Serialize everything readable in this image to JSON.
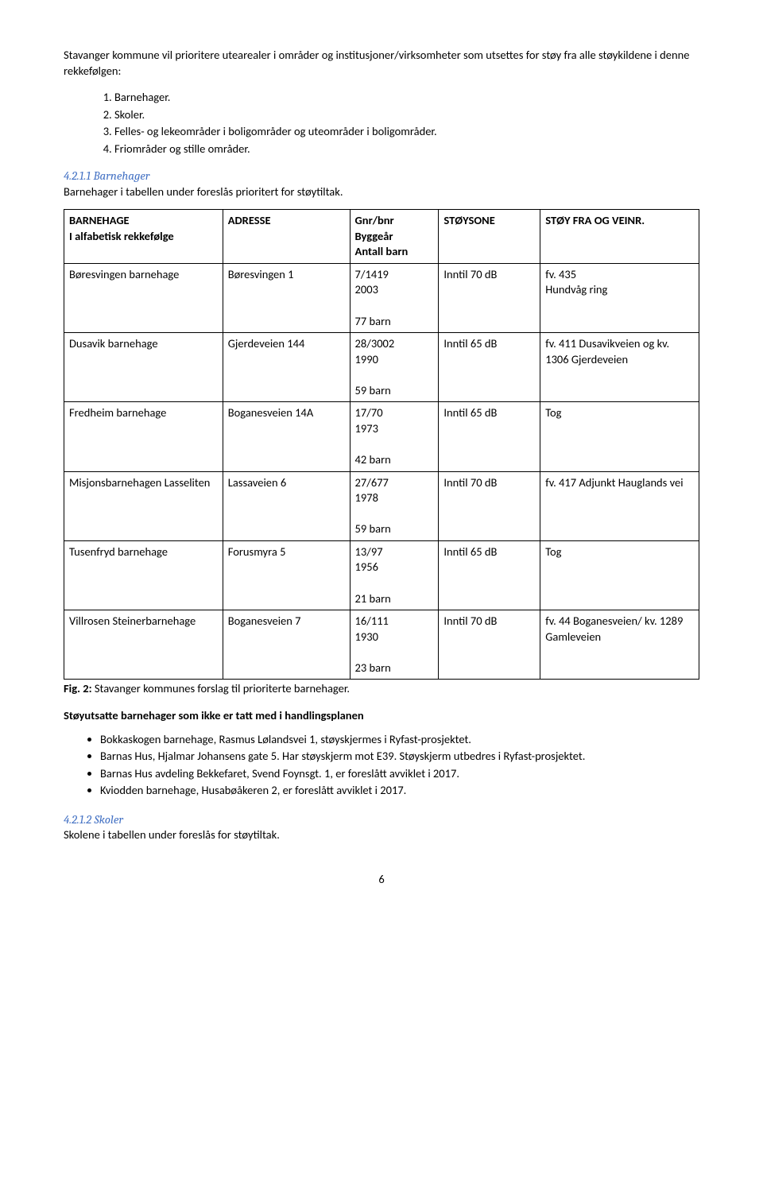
{
  "intro": "Stavanger kommune vil prioritere utearealer i områder og institusjoner/virksomheter som utsettes for støy fra alle støykildene i denne rekkefølgen:",
  "ordered_list": [
    "Barnehager.",
    "Skoler.",
    "Felles- og lekeområder i boligområder og uteområder i boligområder.",
    "Friområder og stille områder."
  ],
  "section1": {
    "num": "4.2.1.1 Barnehager",
    "body": "Barnehager i tabellen under foreslås prioritert for støytiltak."
  },
  "table": {
    "headers": {
      "c1": "BARNEHAGE\nI alfabetisk rekkefølge",
      "c2": "ADRESSE",
      "c3": "Gnr/bnr\nByggeår\nAntall barn",
      "c4": "STØYSONE",
      "c5": "STØY FRA OG VEINR."
    },
    "rows": [
      {
        "c1": "Børesvingen barnehage",
        "c2": "Børesvingen 1",
        "c3": "7/1419\n2003\n\n77 barn",
        "c4": "Inntil 70 dB",
        "c5": "fv. 435\nHundvåg ring"
      },
      {
        "c1": "Dusavik barnehage",
        "c2": "Gjerdeveien 144",
        "c3": "28/3002\n1990\n\n59 barn",
        "c4": "Inntil 65 dB",
        "c5": "fv. 411 Dusavikveien og kv. 1306 Gjerdeveien"
      },
      {
        "c1": "Fredheim barnehage",
        "c2": "Boganesveien 14A",
        "c3": "17/70\n1973\n\n42 barn",
        "c4": "Inntil 65 dB",
        "c5": "Tog"
      },
      {
        "c1": "Misjonsbarnehagen Lasseliten",
        "c2": "Lassaveien 6",
        "c3": "27/677\n1978\n\n59 barn",
        "c4": "Inntil 70 dB",
        "c5": "fv. 417 Adjunkt Hauglands vei"
      },
      {
        "c1": "Tusenfryd barnehage",
        "c2": "Forusmyra 5",
        "c3": "13/97\n1956\n\n21 barn",
        "c4": "Inntil 65 dB",
        "c5": "Tog"
      },
      {
        "c1": "Villrosen Steinerbarnehage",
        "c2": "Boganesveien 7",
        "c3": "16/111\n1930\n\n23 barn",
        "c4": "Inntil 70 dB",
        "c5": "fv. 44 Boganesveien/ kv. 1289 Gamleveien"
      }
    ]
  },
  "fig": {
    "label": "Fig. 2:",
    "text": " Stavanger kommunes forslag til prioriterte barnehager."
  },
  "mid_heading": "Støyutsatte barnehager som ikke er tatt med i handlingsplanen",
  "bullets": [
    "Bokkaskogen barnehage, Rasmus Lølandsvei 1, støyskjermes i Ryfast-prosjektet.",
    "Barnas Hus, Hjalmar Johansens gate 5. Har støyskjerm mot E39. Støyskjerm utbedres i Ryfast-prosjektet.",
    "Barnas Hus avdeling Bekkefaret, Svend Foynsgt. 1, er foreslått avviklet i 2017.",
    "Kviodden barnehage, Husabøåkeren 2, er foreslått avviklet i 2017."
  ],
  "section2": {
    "num": "4.2.1.2 Skoler",
    "body": "Skolene i tabellen under foreslås for støytiltak."
  },
  "page_number": "6"
}
